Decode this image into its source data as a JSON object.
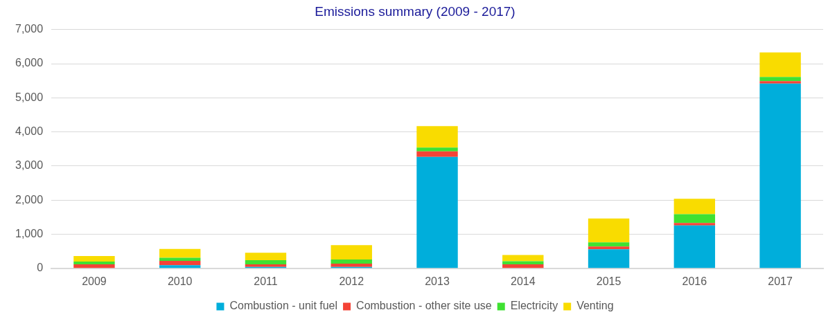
{
  "chart_data": {
    "type": "bar",
    "title": "Emissions summary (2009 - 2017)",
    "stacked": true,
    "grid": "y",
    "legend": "bottom",
    "categories": [
      "2009",
      "2010",
      "2011",
      "2012",
      "2013",
      "2014",
      "2015",
      "2016",
      "2017"
    ],
    "ylim": [
      0,
      7000
    ],
    "yticks": [
      {
        "value": 0,
        "label": "0"
      },
      {
        "value": 1000,
        "label": "1,000"
      },
      {
        "value": 2000,
        "label": "2,000"
      },
      {
        "value": 3000,
        "label": "3,000"
      },
      {
        "value": 4000,
        "label": "4,000"
      },
      {
        "value": 5000,
        "label": "5,000"
      },
      {
        "value": 6000,
        "label": "6,000"
      },
      {
        "value": 7000,
        "label": "7,000"
      }
    ],
    "series": [
      {
        "name": "Combustion - unit fuel",
        "color": "#00aedb",
        "values": [
          0,
          90,
          40,
          40,
          3270,
          0,
          560,
          1260,
          5420
        ]
      },
      {
        "name": "Combustion - other site use",
        "color": "#f44336",
        "values": [
          120,
          130,
          80,
          100,
          160,
          120,
          80,
          70,
          70
        ]
      },
      {
        "name": "Electricity",
        "color": "#3fe132",
        "values": [
          80,
          90,
          120,
          120,
          110,
          90,
          120,
          260,
          120
        ]
      },
      {
        "name": "Venting",
        "color": "#f9dc00",
        "values": [
          160,
          260,
          220,
          420,
          630,
          180,
          700,
          450,
          720
        ]
      }
    ]
  }
}
